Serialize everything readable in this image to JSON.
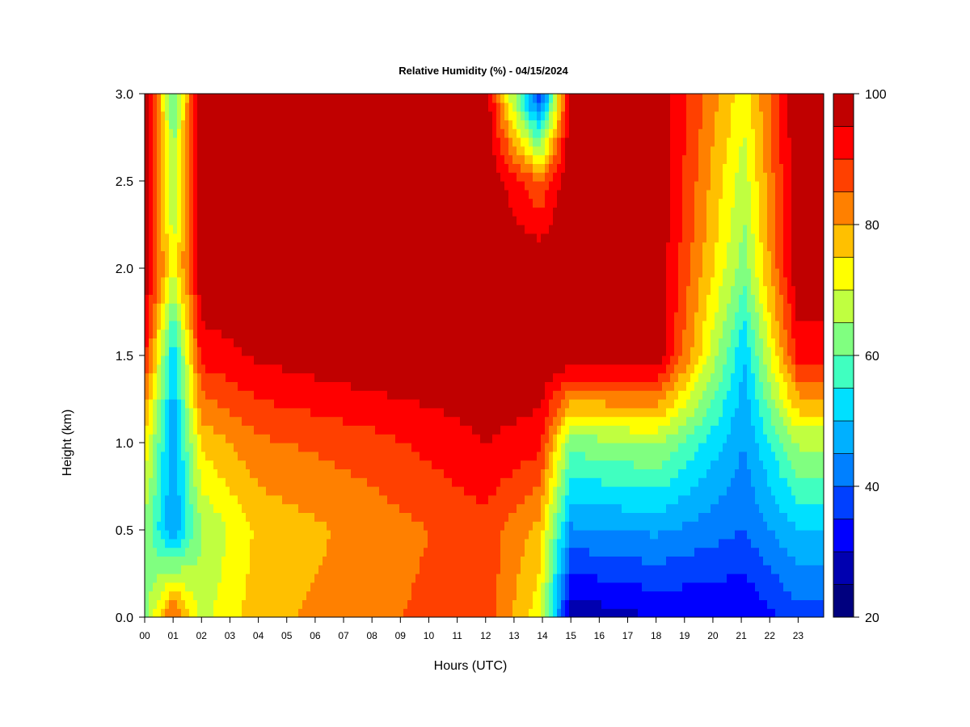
{
  "chart_data": {
    "type": "heatmap",
    "title": "Relative Humidity (%) - 04/15/2024",
    "xlabel": "Hours (UTC)",
    "ylabel": "Height (km)",
    "x_ticks": [
      "00",
      "01",
      "02",
      "03",
      "04",
      "05",
      "06",
      "07",
      "08",
      "09",
      "10",
      "11",
      "12",
      "13",
      "14",
      "15",
      "16",
      "17",
      "18",
      "19",
      "20",
      "21",
      "22",
      "23"
    ],
    "xlim": [
      0,
      23.9
    ],
    "y_ticks": [
      "0.0",
      "0.5",
      "1.0",
      "1.5",
      "2.0",
      "2.5",
      "3.0"
    ],
    "ylim": [
      0,
      3.0
    ],
    "colorbar": {
      "range": [
        20,
        100
      ],
      "tick_labels": [
        "20",
        "40",
        "60",
        "80",
        "100"
      ],
      "levels": [
        20,
        25,
        30,
        35,
        40,
        45,
        50,
        55,
        60,
        65,
        70,
        75,
        80,
        85,
        90,
        95,
        100
      ],
      "colors": [
        "#00007f",
        "#0000b0",
        "#0000ff",
        "#0040ff",
        "#0080ff",
        "#00b0ff",
        "#00e0ff",
        "#40ffc0",
        "#80ff80",
        "#c0ff40",
        "#ffff00",
        "#ffc000",
        "#ff8000",
        "#ff4000",
        "#ff0000",
        "#c00000",
        "#7f0000"
      ]
    },
    "profiles": [
      {
        "hour": 0.0,
        "rh_by_height": {
          "0.0": 62,
          "0.5": 64,
          "1.0": 74,
          "1.5": 92,
          "2.0": 100,
          "3.0": 100
        }
      },
      {
        "hour": 1.0,
        "rh_by_height": {
          "0.0": 88,
          "0.5": 45,
          "1.0": 45,
          "1.5": 50,
          "2.0": 70,
          "3.0": 60
        }
      },
      {
        "hour": 2.0,
        "rh_by_height": {
          "0.0": 68,
          "0.5": 65,
          "1.0": 76,
          "1.5": 92,
          "2.0": 100,
          "3.0": 100
        }
      },
      {
        "hour": 4.0,
        "rh_by_height": {
          "0.0": 78,
          "0.5": 76,
          "1.0": 84,
          "1.5": 96,
          "2.0": 100,
          "3.0": 100
        }
      },
      {
        "hour": 8.0,
        "rh_by_height": {
          "0.0": 84,
          "0.5": 82,
          "1.0": 88,
          "1.5": 100,
          "2.0": 100,
          "3.0": 100
        }
      },
      {
        "hour": 12.0,
        "rh_by_height": {
          "0.0": 88,
          "0.5": 88,
          "1.0": 95,
          "1.5": 100,
          "2.0": 100,
          "3.0": 100
        }
      },
      {
        "hour": 13.9,
        "rh_by_height": {
          "0.0": 72,
          "0.5": 78,
          "1.0": 92,
          "1.5": 100,
          "2.0": 100,
          "2.5": 85,
          "3.0": 32
        }
      },
      {
        "hour": 15.0,
        "rh_by_height": {
          "0.0": 26,
          "0.5": 44,
          "1.0": 62,
          "1.5": 100,
          "2.0": 100,
          "3.0": 100
        }
      },
      {
        "hour": 18.0,
        "rh_by_height": {
          "0.0": 30,
          "0.5": 46,
          "1.0": 66,
          "1.5": 100,
          "2.0": 100,
          "3.0": 100
        }
      },
      {
        "hour": 21.1,
        "rh_by_height": {
          "0.0": 30,
          "0.5": 40,
          "1.0": 45,
          "1.5": 50,
          "2.0": 62,
          "3.0": 72
        }
      },
      {
        "hour": 23.0,
        "rh_by_height": {
          "0.0": 38,
          "0.5": 50,
          "1.0": 66,
          "1.5": 92,
          "2.0": 100,
          "3.0": 100
        }
      }
    ]
  }
}
